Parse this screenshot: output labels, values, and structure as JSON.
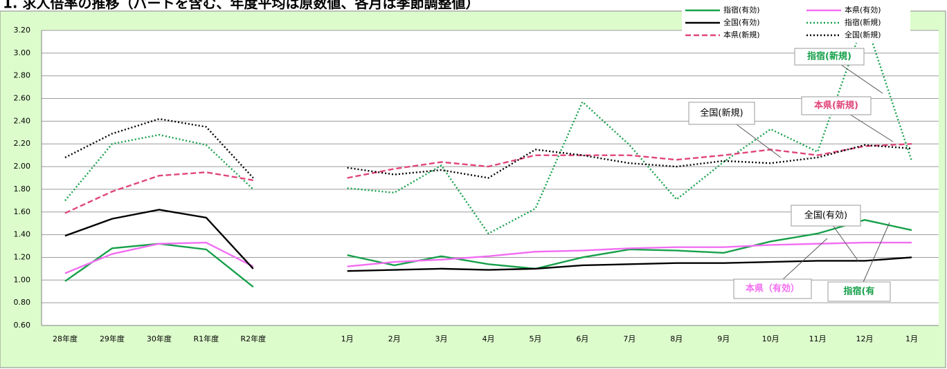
{
  "chart_data": {
    "type": "line",
    "title": "1. 求人倍率の推移（パートを含む、年度平均は原数値、各月は季節調整値）",
    "categories": [
      "28年度",
      "29年度",
      "30年度",
      "R1年度",
      "R2年度",
      null,
      "1月",
      "2月",
      "3月",
      "4月",
      "5月",
      "6月",
      "7月",
      "8月",
      "9月",
      "10月",
      "11月",
      "12月",
      "1月"
    ],
    "series": [
      {
        "name": "指宿(有効)",
        "color": "#16a04a",
        "dash": "solid",
        "values": [
          0.99,
          1.28,
          1.32,
          1.27,
          0.94,
          null,
          1.22,
          1.13,
          1.21,
          1.14,
          1.1,
          1.2,
          1.27,
          1.26,
          1.24,
          1.34,
          1.41,
          1.53,
          1.44
        ]
      },
      {
        "name": "本県(有効)",
        "color": "#f26ef2",
        "dash": "solid",
        "values": [
          1.06,
          1.23,
          1.32,
          1.33,
          1.12,
          null,
          1.12,
          1.16,
          1.18,
          1.21,
          1.25,
          1.26,
          1.28,
          1.29,
          1.29,
          1.31,
          1.32,
          1.33,
          1.33
        ]
      },
      {
        "name": "全国(有効)",
        "color": "#000000",
        "dash": "solid",
        "values": [
          1.39,
          1.54,
          1.62,
          1.55,
          1.1,
          null,
          1.08,
          1.09,
          1.1,
          1.09,
          1.1,
          1.13,
          1.14,
          1.15,
          1.15,
          1.16,
          1.17,
          1.17,
          1.2
        ]
      },
      {
        "name": "指宿(新規)",
        "color": "#16a04a",
        "dash": "dotted",
        "values": [
          1.7,
          2.2,
          2.28,
          2.19,
          1.8,
          null,
          1.81,
          1.77,
          2.01,
          1.41,
          1.63,
          2.57,
          2.19,
          1.71,
          2.04,
          2.33,
          2.13,
          3.3,
          2.05
        ]
      },
      {
        "name": "本県(新規)",
        "color": "#e0457a",
        "dash": "dashed",
        "values": [
          1.59,
          1.78,
          1.92,
          1.95,
          1.88,
          null,
          1.9,
          1.98,
          2.04,
          2.0,
          2.1,
          2.1,
          2.1,
          2.06,
          2.1,
          2.15,
          2.1,
          2.18,
          2.2
        ]
      },
      {
        "name": "全国(新規)",
        "color": "#000000",
        "dash": "dotted",
        "values": [
          2.08,
          2.29,
          2.42,
          2.35,
          1.9,
          null,
          1.99,
          1.93,
          1.97,
          1.9,
          2.15,
          2.1,
          2.03,
          2.0,
          2.05,
          2.03,
          2.08,
          2.19,
          2.16
        ]
      }
    ],
    "ylim": [
      0.6,
      3.2
    ],
    "yticks": [
      {
        "value": 0.6,
        "label": "0.60"
      },
      {
        "value": 0.8,
        "label": "0.80"
      },
      {
        "value": 1,
        "label": "1.00"
      },
      {
        "value": 1.2,
        "label": "1.20"
      },
      {
        "value": 1.4,
        "label": "1.40"
      },
      {
        "value": 1.6,
        "label": "1.60"
      },
      {
        "value": 1.8,
        "label": "1.80"
      },
      {
        "value": 2,
        "label": "2.00"
      },
      {
        "value": 2.2,
        "label": "2.20"
      },
      {
        "value": 2.4,
        "label": "2.40"
      },
      {
        "value": 2.6,
        "label": "2.60"
      },
      {
        "value": 2.8,
        "label": "2.80"
      },
      {
        "value": 3,
        "label": "3.00"
      },
      {
        "value": 3.2,
        "label": "3.20"
      }
    ],
    "grid": true,
    "annotations": [
      "指宿(新規)",
      "全国(新規)",
      "本県(新規)",
      "全国(有効)",
      "本県（有効）",
      "指宿(有"
    ]
  }
}
